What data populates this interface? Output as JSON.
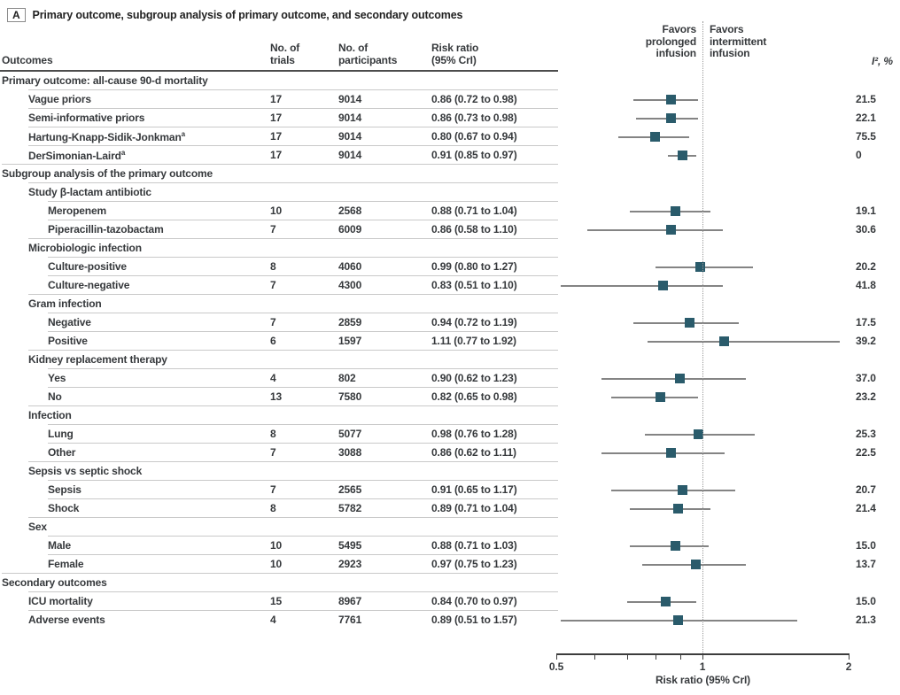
{
  "panel": {
    "label": "A",
    "title": "Primary outcome, subgroup analysis of primary outcome, and secondary outcomes"
  },
  "columns": {
    "outcomes": "Outcomes",
    "trials": [
      "No. of",
      "trials"
    ],
    "participants": [
      "No. of",
      "participants"
    ],
    "risk_ratio": [
      "Risk ratio",
      "(95% CrI)"
    ],
    "favors_prolonged": [
      "Favors",
      "prolonged",
      "infusion"
    ],
    "favors_intermittent": [
      "Favors",
      "intermittent",
      "infusion"
    ],
    "i2": "I², %"
  },
  "axis": {
    "label": "Risk ratio (95% CrI)",
    "min": 0.5,
    "max": 2,
    "scale": "log",
    "ref_line": 1,
    "ticks": [
      {
        "v": 0.5,
        "label": "0.5"
      },
      {
        "v": 0.6
      },
      {
        "v": 0.7
      },
      {
        "v": 0.8
      },
      {
        "v": 0.9
      },
      {
        "v": 1,
        "label": "1"
      },
      {
        "v": 2,
        "label": "2"
      }
    ]
  },
  "colors": {
    "marker": "#2a5b6b",
    "ci_line": "#848484",
    "rule": "#c9c9c9",
    "header_rule": "#4c4c4c",
    "text": "#36393c"
  },
  "chart_data": {
    "type": "forest_plot",
    "x_axis": {
      "label": "Risk ratio (95% CrI)",
      "min": 0.5,
      "max": 2,
      "scale": "log",
      "reference": 1
    },
    "rows": [
      {
        "header": true,
        "level": 0,
        "label": "Primary outcome: all-cause 90-d mortality"
      },
      {
        "level": 1,
        "label": "Vague priors",
        "trials": "17",
        "participants": "9014",
        "rr_text": "0.86 (0.72 to 0.98)",
        "est": 0.86,
        "lo": 0.72,
        "hi": 0.98,
        "i2": "21.5"
      },
      {
        "level": 1,
        "label": "Semi-informative priors",
        "trials": "17",
        "participants": "9014",
        "rr_text": "0.86 (0.73 to 0.98)",
        "est": 0.86,
        "lo": 0.73,
        "hi": 0.98,
        "i2": "22.1"
      },
      {
        "level": 1,
        "label": "Hartung-Knapp-Sidik-Jonkman",
        "sup": "a",
        "trials": "17",
        "participants": "9014",
        "rr_text": "0.80 (0.67 to 0.94)",
        "est": 0.8,
        "lo": 0.67,
        "hi": 0.94,
        "i2": "75.5"
      },
      {
        "level": 1,
        "label": "DerSimonian-Laird",
        "sup": "a",
        "trials": "17",
        "participants": "9014",
        "rr_text": "0.91 (0.85 to 0.97)",
        "est": 0.91,
        "lo": 0.85,
        "hi": 0.97,
        "i2": "0"
      },
      {
        "header": true,
        "level": 0,
        "label": "Subgroup analysis of the primary outcome"
      },
      {
        "header": true,
        "level": 1,
        "label": "Study β-lactam antibiotic"
      },
      {
        "level": 2,
        "label": "Meropenem",
        "trials": "10",
        "participants": "2568",
        "rr_text": "0.88 (0.71 to 1.04)",
        "est": 0.88,
        "lo": 0.71,
        "hi": 1.04,
        "i2": "19.1"
      },
      {
        "level": 2,
        "label": "Piperacillin-tazobactam",
        "trials": "7",
        "participants": "6009",
        "rr_text": "0.86 (0.58 to 1.10)",
        "est": 0.86,
        "lo": 0.58,
        "hi": 1.1,
        "i2": "30.6"
      },
      {
        "header": true,
        "level": 1,
        "label": "Microbiologic infection"
      },
      {
        "level": 2,
        "label": "Culture-positive",
        "trials": "8",
        "participants": "4060",
        "rr_text": "0.99 (0.80 to 1.27)",
        "est": 0.99,
        "lo": 0.8,
        "hi": 1.27,
        "i2": "20.2"
      },
      {
        "level": 2,
        "label": "Culture-negative",
        "trials": "7",
        "participants": "4300",
        "rr_text": "0.83 (0.51 to 1.10)",
        "est": 0.83,
        "lo": 0.51,
        "hi": 1.1,
        "i2": "41.8"
      },
      {
        "header": true,
        "level": 1,
        "label": "Gram infection"
      },
      {
        "level": 2,
        "label": "Negative",
        "trials": "7",
        "participants": "2859",
        "rr_text": "0.94 (0.72 to 1.19)",
        "est": 0.94,
        "lo": 0.72,
        "hi": 1.19,
        "i2": "17.5"
      },
      {
        "level": 2,
        "label": "Positive",
        "trials": "6",
        "participants": "1597",
        "rr_text": "1.11 (0.77 to 1.92)",
        "est": 1.11,
        "lo": 0.77,
        "hi": 1.92,
        "i2": "39.2"
      },
      {
        "header": true,
        "level": 1,
        "label": "Kidney replacement therapy"
      },
      {
        "level": 2,
        "label": "Yes",
        "trials": "4",
        "participants": "802",
        "rr_text": "0.90 (0.62 to 1.23)",
        "est": 0.9,
        "lo": 0.62,
        "hi": 1.23,
        "i2": "37.0"
      },
      {
        "level": 2,
        "label": "No",
        "trials": "13",
        "participants": "7580",
        "rr_text": "0.82 (0.65 to 0.98)",
        "est": 0.82,
        "lo": 0.65,
        "hi": 0.98,
        "i2": "23.2"
      },
      {
        "header": true,
        "level": 1,
        "label": "Infection"
      },
      {
        "level": 2,
        "label": "Lung",
        "trials": "8",
        "participants": "5077",
        "rr_text": "0.98 (0.76 to 1.28)",
        "est": 0.98,
        "lo": 0.76,
        "hi": 1.28,
        "i2": "25.3"
      },
      {
        "level": 2,
        "label": "Other",
        "trials": "7",
        "participants": "3088",
        "rr_text": "0.86 (0.62 to 1.11)",
        "est": 0.86,
        "lo": 0.62,
        "hi": 1.11,
        "i2": "22.5"
      },
      {
        "header": true,
        "level": 1,
        "label": "Sepsis vs septic shock"
      },
      {
        "level": 2,
        "label": "Sepsis",
        "trials": "7",
        "participants": "2565",
        "rr_text": "0.91 (0.65 to 1.17)",
        "est": 0.91,
        "lo": 0.65,
        "hi": 1.17,
        "i2": "20.7"
      },
      {
        "level": 2,
        "label": "Shock",
        "trials": "8",
        "participants": "5782",
        "rr_text": "0.89 (0.71 to 1.04)",
        "est": 0.89,
        "lo": 0.71,
        "hi": 1.04,
        "i2": "21.4"
      },
      {
        "header": true,
        "level": 1,
        "label": "Sex"
      },
      {
        "level": 2,
        "label": "Male",
        "trials": "10",
        "participants": "5495",
        "rr_text": "0.88 (0.71 to 1.03)",
        "est": 0.88,
        "lo": 0.71,
        "hi": 1.03,
        "i2": "15.0"
      },
      {
        "level": 2,
        "label": "Female",
        "trials": "10",
        "participants": "2923",
        "rr_text": "0.97 (0.75 to 1.23)",
        "est": 0.97,
        "lo": 0.75,
        "hi": 1.23,
        "i2": "13.7"
      },
      {
        "header": true,
        "level": 0,
        "label": "Secondary outcomes"
      },
      {
        "level": 1,
        "label": "ICU mortality",
        "trials": "15",
        "participants": "8967",
        "rr_text": "0.84 (0.70 to 0.97)",
        "est": 0.84,
        "lo": 0.7,
        "hi": 0.97,
        "i2": "15.0"
      },
      {
        "level": 1,
        "label": "Adverse events",
        "trials": "4",
        "participants": "7761",
        "rr_text": "0.89 (0.51 to 1.57)",
        "est": 0.89,
        "lo": 0.51,
        "hi": 1.57,
        "i2": "21.3"
      }
    ]
  }
}
